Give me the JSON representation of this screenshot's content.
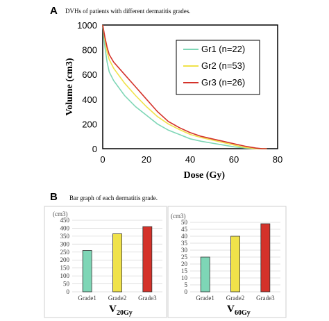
{
  "panel_a": {
    "letter": "A",
    "caption": "DVHs of patients with different dermatitis grades."
  },
  "panel_b": {
    "letter": "B",
    "caption": "Bar graph of each dermatitis grade."
  },
  "colors": {
    "gr1": "#7ed6b6",
    "gr2": "#f0e24a",
    "gr3": "#d4322a"
  },
  "chart_data": [
    {
      "type": "line",
      "title": "",
      "xlabel": "Dose (Gy)",
      "ylabel": "Volume (cm3)",
      "xlim": [
        0,
        80
      ],
      "ylim": [
        0,
        1000
      ],
      "xticks": [
        0,
        20,
        40,
        60,
        80
      ],
      "yticks": [
        0,
        200,
        400,
        600,
        800,
        1000
      ],
      "legend_position": "top-right",
      "series": [
        {
          "name": "Gr1 (n=22)",
          "x": [
            0,
            1,
            2,
            3,
            5,
            10,
            15,
            20,
            25,
            30,
            35,
            40,
            45,
            50,
            55,
            60,
            65,
            70,
            73,
            75
          ],
          "y": [
            1000,
            820,
            700,
            620,
            550,
            430,
            340,
            270,
            200,
            150,
            115,
            80,
            60,
            45,
            30,
            15,
            5,
            0,
            0,
            0
          ]
        },
        {
          "name": "Gr2 (n=53)",
          "x": [
            0,
            1,
            2,
            3,
            5,
            10,
            15,
            20,
            25,
            30,
            35,
            40,
            45,
            50,
            55,
            60,
            65,
            70,
            73,
            75
          ],
          "y": [
            1000,
            880,
            780,
            720,
            650,
            530,
            430,
            340,
            260,
            200,
            155,
            115,
            90,
            70,
            50,
            30,
            10,
            0,
            0,
            0
          ]
        },
        {
          "name": "Gr3 (n=26)",
          "x": [
            0,
            1,
            2,
            3,
            5,
            10,
            15,
            20,
            25,
            30,
            35,
            40,
            45,
            50,
            55,
            60,
            65,
            70,
            73,
            75
          ],
          "y": [
            1000,
            900,
            820,
            760,
            700,
            600,
            500,
            400,
            300,
            220,
            170,
            130,
            100,
            80,
            60,
            40,
            20,
            5,
            0,
            0
          ]
        }
      ]
    },
    {
      "type": "bar",
      "unit_label": "(cm3)",
      "ylim": [
        0,
        450
      ],
      "yticks": [
        0,
        50,
        100,
        150,
        200,
        250,
        300,
        350,
        400,
        450
      ],
      "categories": [
        "Grade1",
        "Grade2",
        "Grade3"
      ],
      "values": [
        260,
        365,
        410
      ],
      "label_main": "V",
      "label_sub": "20Gy"
    },
    {
      "type": "bar",
      "unit_label": "(cm3)",
      "ylim": [
        0,
        50
      ],
      "yticks": [
        0,
        5,
        10,
        15,
        20,
        25,
        30,
        35,
        40,
        45,
        50
      ],
      "categories": [
        "Grade1",
        "Grade2",
        "Grade3"
      ],
      "values": [
        25,
        40,
        49
      ],
      "label_main": "V",
      "label_sub": "60Gy"
    }
  ]
}
